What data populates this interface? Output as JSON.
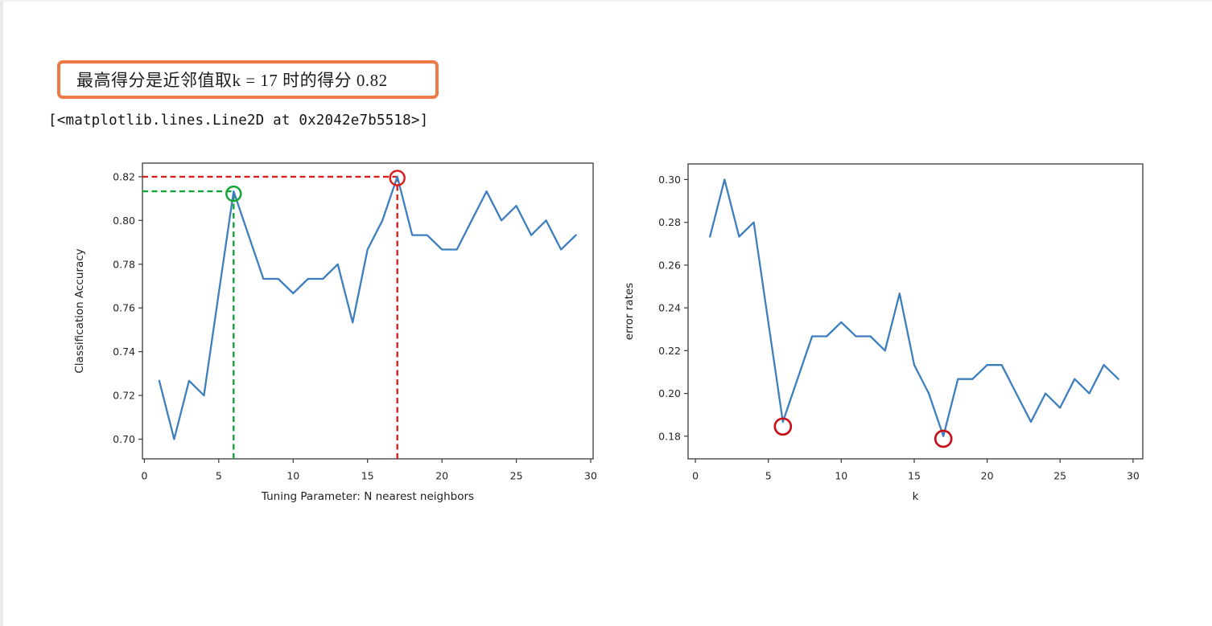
{
  "banner": {
    "text": "最高得分是近邻值取k = 17 时的得分 0.82",
    "border_color": "#ee7a45"
  },
  "repr_output": "[<matplotlib.lines.Line2D at 0x2042e7b5518>]",
  "colors": {
    "line_blue": "#3d7fbe",
    "annotation_green": "#14a437",
    "annotation_red": "#da1f1c",
    "circle_dark_red": "#c8101a",
    "spine": "#3a3a3a"
  },
  "chart_data": [
    {
      "type": "line",
      "title": "",
      "xlabel": "Tuning Parameter: N nearest neighbors",
      "ylabel": "Classification Accuracy",
      "x": [
        1,
        2,
        3,
        4,
        5,
        6,
        7,
        8,
        9,
        10,
        11,
        12,
        13,
        14,
        15,
        16,
        17,
        18,
        19,
        20,
        21,
        22,
        23,
        24,
        25,
        26,
        27,
        28,
        29
      ],
      "values": [
        0.7267,
        0.7,
        0.7267,
        0.72,
        0.7667,
        0.8133,
        0.7933,
        0.7733,
        0.7733,
        0.7667,
        0.7733,
        0.7733,
        0.78,
        0.7533,
        0.7867,
        0.8,
        0.82,
        0.7933,
        0.7933,
        0.7867,
        0.7867,
        0.8,
        0.8133,
        0.8,
        0.8067,
        0.7933,
        0.8,
        0.7867,
        0.7933
      ],
      "best_point": {
        "k": 17,
        "accuracy": 0.82
      },
      "second_best_point": {
        "k": 6,
        "accuracy": 0.8133
      },
      "xticks": [
        0,
        5,
        10,
        15,
        20,
        25,
        30
      ],
      "yticks": [
        0.7,
        0.72,
        0.74,
        0.76,
        0.78,
        0.8,
        0.82
      ],
      "ytick_labels": [
        "0.70",
        "0.72",
        "0.74",
        "0.76",
        "0.78",
        "0.80",
        "0.82"
      ],
      "xlim": [
        -0.13,
        30.16
      ],
      "ylim": [
        0.691,
        0.8262
      ],
      "grid": false,
      "legend": null,
      "line_color": "#3d7fbe",
      "annotations": {
        "dashed": [
          {
            "color": "#14a437",
            "from": [
              -0.13,
              0.8133
            ],
            "to": [
              6,
              0.8133
            ]
          },
          {
            "color": "#14a437",
            "from": [
              6,
              0.691
            ],
            "to": [
              6,
              0.8133
            ]
          },
          {
            "color": "#da1f1c",
            "from": [
              -0.13,
              0.82
            ],
            "to": [
              17,
              0.82
            ]
          },
          {
            "color": "#da1f1c",
            "from": [
              17,
              0.691
            ],
            "to": [
              17,
              0.82
            ]
          }
        ],
        "circles": [
          {
            "x": 6,
            "y": 0.8122,
            "r": 9,
            "color": "#14a437"
          },
          {
            "x": 17,
            "y": 0.8194,
            "r": 9,
            "color": "#da1f1c"
          }
        ]
      }
    },
    {
      "type": "line",
      "title": "",
      "xlabel": "k",
      "ylabel": "error rates",
      "x": [
        1,
        2,
        3,
        4,
        5,
        6,
        7,
        8,
        9,
        10,
        11,
        12,
        13,
        14,
        15,
        16,
        17,
        18,
        19,
        20,
        21,
        22,
        23,
        24,
        25,
        26,
        27,
        28,
        29
      ],
      "values": [
        0.2733,
        0.3,
        0.2733,
        0.28,
        0.2333,
        0.1867,
        0.2067,
        0.2267,
        0.2267,
        0.2333,
        0.2267,
        0.2267,
        0.22,
        0.2467,
        0.2133,
        0.2,
        0.18,
        0.2067,
        0.2067,
        0.2133,
        0.2133,
        0.2,
        0.1867,
        0.2,
        0.1933,
        0.2067,
        0.2,
        0.2133,
        0.2067
      ],
      "min_points": [
        {
          "k": 6,
          "error": 0.1867
        },
        {
          "k": 17,
          "error": 0.18
        }
      ],
      "xticks": [
        0,
        5,
        10,
        15,
        20,
        25,
        30
      ],
      "yticks": [
        0.18,
        0.2,
        0.22,
        0.24,
        0.26,
        0.28,
        0.3
      ],
      "ytick_labels": [
        "0.18",
        "0.20",
        "0.22",
        "0.24",
        "0.26",
        "0.28",
        "0.30"
      ],
      "xlim": [
        -0.5,
        30.67
      ],
      "ylim": [
        0.1694,
        0.3073
      ],
      "grid": false,
      "legend": null,
      "line_color": "#3d7fbe",
      "annotations": {
        "dashed": [],
        "circles": [
          {
            "x": 6,
            "y": 0.1845,
            "r": 10,
            "color": "#c8101a"
          },
          {
            "x": 17,
            "y": 0.1788,
            "r": 10,
            "color": "#c8101a"
          }
        ]
      }
    }
  ]
}
